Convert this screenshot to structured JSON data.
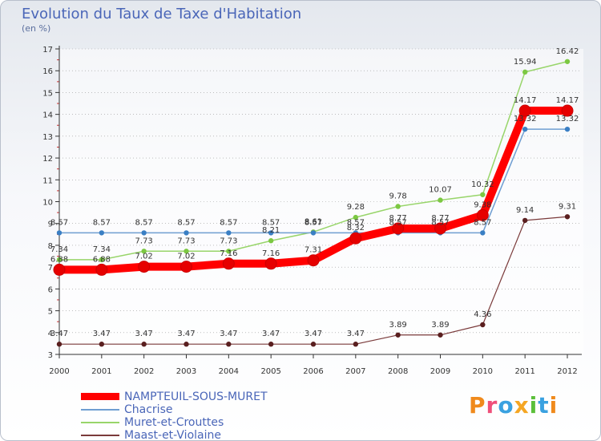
{
  "title": "Evolution du Taux de Taxe d'Habitation",
  "subtitle": "(en %)",
  "logo": "Proxiti",
  "colors": {
    "series": [
      "#ff0000",
      "#6f9ed2",
      "#98d56a",
      "#7a3a3a"
    ],
    "markers": [
      "#e60000",
      "#3a7fc4",
      "#7cc842",
      "#5a1f1f"
    ],
    "axis": "#333333",
    "grid": "#999999",
    "title": "#4a66b8"
  },
  "chart_data": {
    "type": "line",
    "x": [
      "2000",
      "2001",
      "2002",
      "2003",
      "2004",
      "2005",
      "2006",
      "2007",
      "2008",
      "2009",
      "2010",
      "2011",
      "2012"
    ],
    "ylim": [
      3,
      17
    ],
    "yticks": [
      "3",
      "4",
      "5",
      "6",
      "7",
      "8",
      "9",
      "10",
      "11",
      "12",
      "13",
      "14",
      "15",
      "16",
      "17"
    ],
    "grid": "horizontal dotted",
    "legend_position": "bottom-left",
    "series": [
      {
        "name": "NAMPTEUIL-SOUS-MURET",
        "values": [
          6.88,
          6.88,
          7.02,
          7.02,
          7.16,
          7.16,
          7.31,
          8.32,
          8.77,
          8.77,
          9.38,
          14.17,
          14.17
        ],
        "labels": [
          "6.88",
          "6.88",
          "7.02",
          "7.02",
          "7.16",
          "7.16",
          "7.31",
          "8.32",
          "8.77",
          "8.77",
          "9.38",
          "14.17",
          "14.17"
        ]
      },
      {
        "name": "Chacrise",
        "values": [
          8.57,
          8.57,
          8.57,
          8.57,
          8.57,
          8.57,
          8.57,
          8.57,
          8.57,
          8.57,
          8.57,
          13.32,
          13.32
        ],
        "labels": [
          "8.57",
          "8.57",
          "8.57",
          "8.57",
          "8.57",
          "8.57",
          "8.57",
          "8.57",
          "8.57",
          "8.57",
          "8.57",
          "13.32",
          "13.32"
        ]
      },
      {
        "name": "Muret-et-Crouttes",
        "values": [
          7.34,
          7.34,
          7.73,
          7.73,
          7.73,
          8.21,
          8.61,
          9.28,
          9.78,
          10.07,
          10.32,
          15.94,
          16.42
        ],
        "labels": [
          "7.34",
          "7.34",
          "7.73",
          "7.73",
          "7.73",
          "8.21",
          "8.61",
          "9.28",
          "9.78",
          "10.07",
          "10.32",
          "15.94",
          "16.42"
        ]
      },
      {
        "name": "Maast-et-Violaine",
        "values": [
          3.47,
          3.47,
          3.47,
          3.47,
          3.47,
          3.47,
          3.47,
          3.47,
          3.89,
          3.89,
          4.36,
          9.14,
          9.31
        ],
        "labels": [
          "3.47",
          "3.47",
          "3.47",
          "3.47",
          "3.47",
          "3.47",
          "3.47",
          "3.47",
          "3.89",
          "3.89",
          "4.36",
          "9.14",
          "9.31"
        ]
      }
    ]
  }
}
